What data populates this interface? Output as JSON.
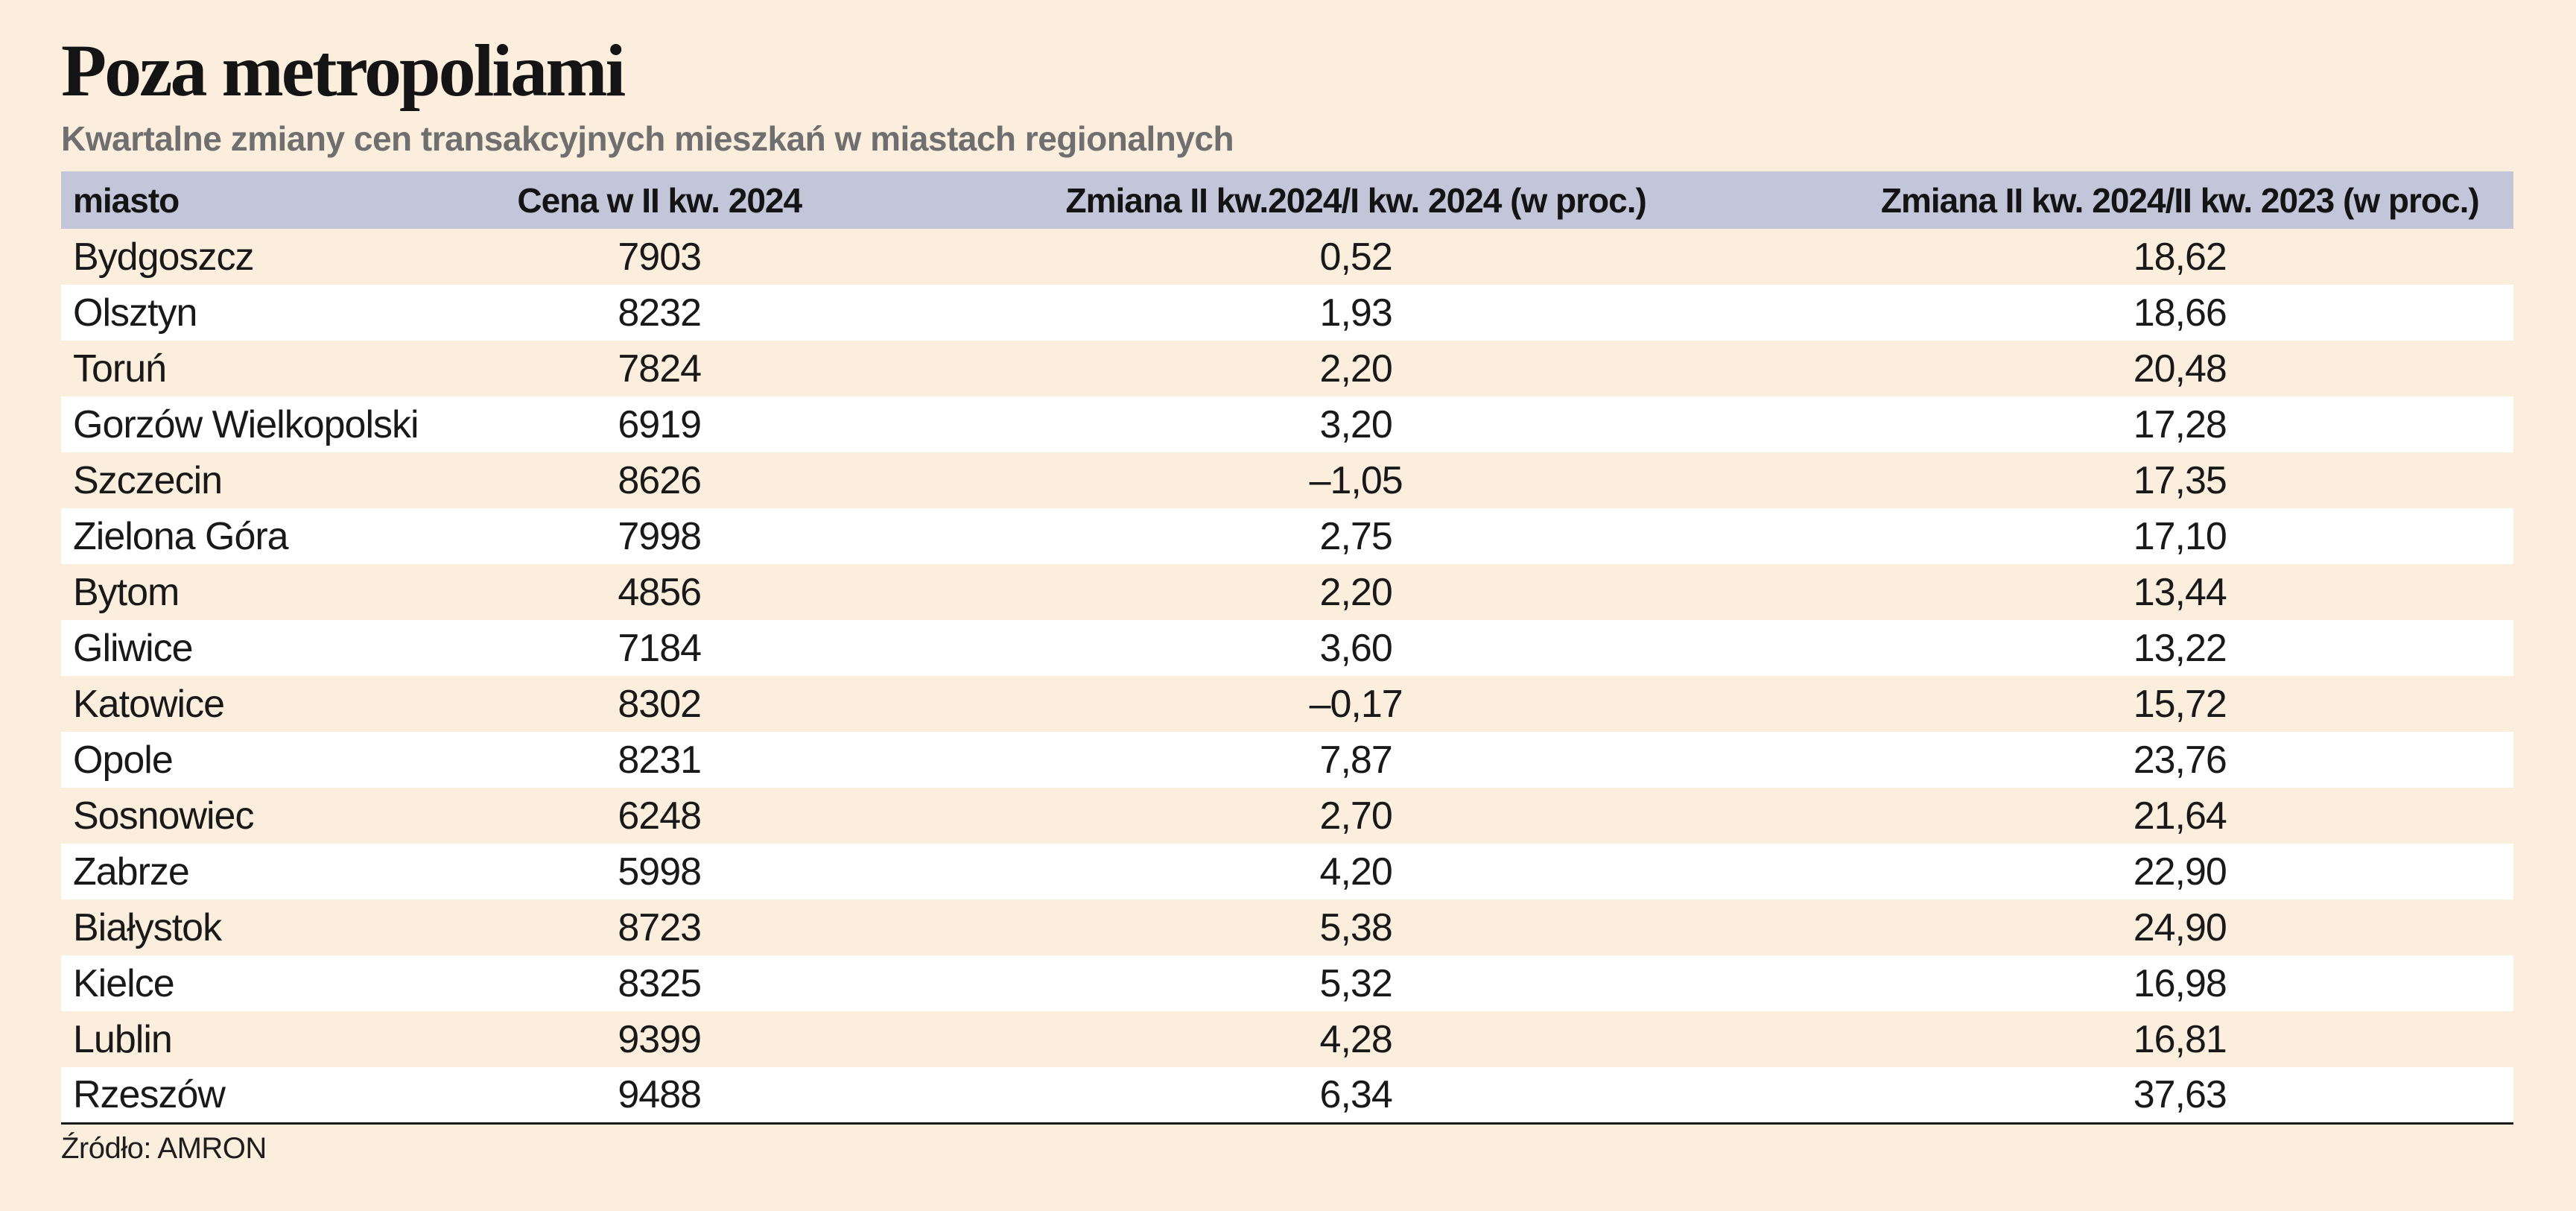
{
  "page": {
    "title": "Poza metropoliami",
    "subtitle": "Kwartalne zmiany cen transakcyjnych mieszkań w miastach regionalnych",
    "source": "Źródło: AMRON"
  },
  "table": {
    "columns": [
      "miasto",
      "Cena w II kw. 2024",
      "Zmiana II kw.2024/I kw. 2024 (w proc.)",
      "Zmiana II kw. 2024/II kw. 2023 (w proc.)"
    ],
    "rows": [
      [
        "Bydgoszcz",
        "7903",
        "0,52",
        "18,62"
      ],
      [
        "Olsztyn",
        "8232",
        "1,93",
        "18,66"
      ],
      [
        "Toruń",
        "7824",
        "2,20",
        "20,48"
      ],
      [
        "Gorzów Wielkopolski",
        "6919",
        "3,20",
        "17,28"
      ],
      [
        "Szczecin",
        "8626",
        "–1,05",
        "17,35"
      ],
      [
        "Zielona Góra",
        "7998",
        "2,75",
        "17,10"
      ],
      [
        "Bytom",
        "4856",
        "2,20",
        "13,44"
      ],
      [
        "Gliwice",
        "7184",
        "3,60",
        "13,22"
      ],
      [
        "Katowice",
        "8302",
        "–0,17",
        "15,72"
      ],
      [
        "Opole",
        "8231",
        "7,87",
        "23,76"
      ],
      [
        "Sosnowiec",
        "6248",
        "2,70",
        "21,64"
      ],
      [
        "Zabrze",
        "5998",
        "4,20",
        "22,90"
      ],
      [
        "Białystok",
        "8723",
        "5,38",
        "24,90"
      ],
      [
        "Kielce",
        "8325",
        "5,32",
        "16,98"
      ],
      [
        "Lublin",
        "9399",
        "4,28",
        "16,81"
      ],
      [
        "Rzeszów",
        "9488",
        "6,34",
        "37,63"
      ]
    ]
  },
  "chart_data": {
    "type": "table",
    "title": "Poza metropoliami",
    "subtitle": "Kwartalne zmiany cen transakcyjnych mieszkań w miastach regionalnych",
    "source": "Źródło: AMRON",
    "columns": [
      "miasto",
      "Cena w II kw. 2024",
      "Zmiana II kw.2024/I kw. 2024 (w proc.)",
      "Zmiana II kw. 2024/II kw. 2023 (w proc.)"
    ],
    "rows": [
      {
        "miasto": "Bydgoszcz",
        "cena_II_kw_2024": 7903,
        "zmiana_kw_kw_proc": 0.52,
        "zmiana_r_r_proc": 18.62
      },
      {
        "miasto": "Olsztyn",
        "cena_II_kw_2024": 8232,
        "zmiana_kw_kw_proc": 1.93,
        "zmiana_r_r_proc": 18.66
      },
      {
        "miasto": "Toruń",
        "cena_II_kw_2024": 7824,
        "zmiana_kw_kw_proc": 2.2,
        "zmiana_r_r_proc": 20.48
      },
      {
        "miasto": "Gorzów Wielkopolski",
        "cena_II_kw_2024": 6919,
        "zmiana_kw_kw_proc": 3.2,
        "zmiana_r_r_proc": 17.28
      },
      {
        "miasto": "Szczecin",
        "cena_II_kw_2024": 8626,
        "zmiana_kw_kw_proc": -1.05,
        "zmiana_r_r_proc": 17.35
      },
      {
        "miasto": "Zielona Góra",
        "cena_II_kw_2024": 7998,
        "zmiana_kw_kw_proc": 2.75,
        "zmiana_r_r_proc": 17.1
      },
      {
        "miasto": "Bytom",
        "cena_II_kw_2024": 4856,
        "zmiana_kw_kw_proc": 2.2,
        "zmiana_r_r_proc": 13.44
      },
      {
        "miasto": "Gliwice",
        "cena_II_kw_2024": 7184,
        "zmiana_kw_kw_proc": 3.6,
        "zmiana_r_r_proc": 13.22
      },
      {
        "miasto": "Katowice",
        "cena_II_kw_2024": 8302,
        "zmiana_kw_kw_proc": -0.17,
        "zmiana_r_r_proc": 15.72
      },
      {
        "miasto": "Opole",
        "cena_II_kw_2024": 8231,
        "zmiana_kw_kw_proc": 7.87,
        "zmiana_r_r_proc": 23.76
      },
      {
        "miasto": "Sosnowiec",
        "cena_II_kw_2024": 6248,
        "zmiana_kw_kw_proc": 2.7,
        "zmiana_r_r_proc": 21.64
      },
      {
        "miasto": "Zabrze",
        "cena_II_kw_2024": 5998,
        "zmiana_kw_kw_proc": 4.2,
        "zmiana_r_r_proc": 22.9
      },
      {
        "miasto": "Białystok",
        "cena_II_kw_2024": 8723,
        "zmiana_kw_kw_proc": 5.38,
        "zmiana_r_r_proc": 24.9
      },
      {
        "miasto": "Kielce",
        "cena_II_kw_2024": 8325,
        "zmiana_kw_kw_proc": 5.32,
        "zmiana_r_r_proc": 16.98
      },
      {
        "miasto": "Lublin",
        "cena_II_kw_2024": 9399,
        "zmiana_kw_kw_proc": 4.28,
        "zmiana_r_r_proc": 16.81
      },
      {
        "miasto": "Rzeszów",
        "cena_II_kw_2024": 9488,
        "zmiana_kw_kw_proc": 6.34,
        "zmiana_r_r_proc": 37.63
      }
    ]
  },
  "colors": {
    "background": "#fbeedd",
    "header_background": "#c2c6d8",
    "row_alternate": "#ffffff",
    "text": "#191919",
    "subtitle_text": "#6f6f6f",
    "rule": "#1a1a1a"
  }
}
